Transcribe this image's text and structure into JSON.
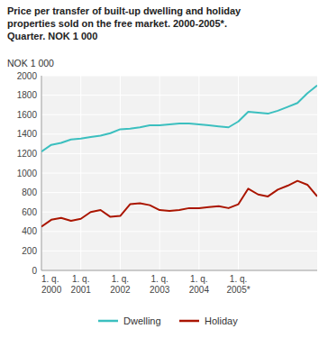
{
  "chart_data": {
    "type": "line",
    "title": "Price per transfer of built-up dwelling and holiday\nproperties sold on the free market. 2000-2005*.\nQuarter. NOK 1 000",
    "ylabel": "NOK 1 000",
    "categories": [
      "1. q.\n2000",
      null,
      null,
      null,
      "1. q.\n2001",
      null,
      null,
      null,
      "1. q.\n2002",
      null,
      null,
      null,
      "1. q.\n2003",
      null,
      null,
      null,
      "1. q.\n2004",
      null,
      null,
      null,
      "1. q.\n2005*",
      null,
      null,
      null,
      null,
      null,
      null,
      null,
      null
    ],
    "series": [
      {
        "name": "Dwelling",
        "color": "#3BBFBF",
        "values": [
          1220,
          1290,
          1310,
          1345,
          1355,
          1370,
          1385,
          1410,
          1450,
          1455,
          1470,
          1490,
          1490,
          1500,
          1510,
          1510,
          1500,
          1490,
          1480,
          1470,
          1530,
          1630,
          1620,
          1610,
          1640,
          1680,
          1720,
          1820,
          1900
        ]
      },
      {
        "name": "Holiday",
        "color": "#AA1500",
        "values": [
          450,
          520,
          540,
          510,
          530,
          600,
          620,
          550,
          560,
          680,
          690,
          670,
          620,
          610,
          620,
          640,
          640,
          650,
          660,
          640,
          680,
          840,
          780,
          760,
          830,
          870,
          920,
          880,
          760
        ]
      }
    ],
    "ylim": [
      0,
      2000
    ],
    "yticks": [
      0,
      200,
      400,
      600,
      800,
      1000,
      1200,
      1400,
      1600,
      1800,
      2000
    ],
    "grid": true,
    "legend": "bottom"
  }
}
